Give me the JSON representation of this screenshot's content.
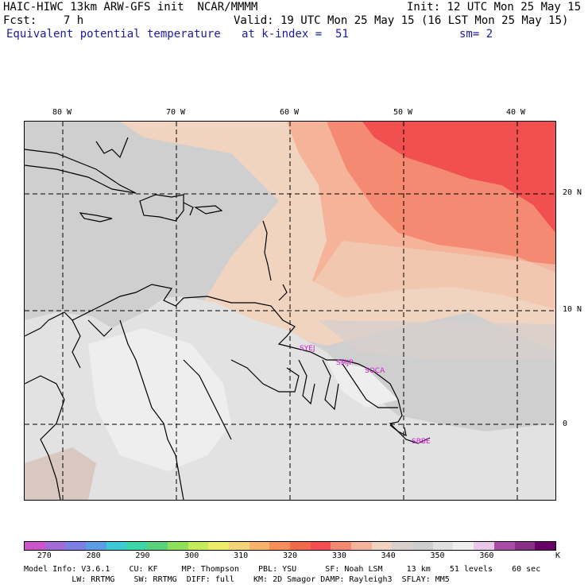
{
  "header": {
    "left_line1": "HAIC-HIWC 13km ARW-GFS init  NCAR/MMMM",
    "right_line1": "Init: 12 UTC Mon 25 May 15",
    "left_line2": "Fcst:    7 h",
    "right_line2": "Valid: 19 UTC Mon 25 May 15 (16 LST Mon 25 May 15)",
    "field": "Equivalent potential temperature",
    "level": "at k-index =  51",
    "smoothing": "sm= 2"
  },
  "longitude_labels": [
    "80 W",
    "70 W",
    "60 W",
    "50 W",
    "40 W"
  ],
  "latitude_labels": [
    "20 N",
    "10 N",
    "0"
  ],
  "stations": [
    "SYEJ",
    "SMJP",
    "SOCA",
    "SBBE"
  ],
  "colorbar": {
    "colors": [
      "#cc55cc",
      "#a36bd6",
      "#7f7fe8",
      "#5a9ee8",
      "#3ec9d6",
      "#3ed6a8",
      "#5ad27a",
      "#8ee05a",
      "#c4ec5a",
      "#ecec6b",
      "#f5d479",
      "#f5b46b",
      "#f5905a",
      "#f06b4a",
      "#f25050",
      "#f58a72",
      "#f5b49a",
      "#f0d4c0",
      "#d8d0cc",
      "#cfcfcf",
      "#e0e0e0",
      "#eeeeee",
      "#e8c8e8",
      "#a84ca8",
      "#883088",
      "#660066"
    ],
    "tick_labels": [
      "270",
      "280",
      "290",
      "300",
      "310",
      "320",
      "330",
      "340",
      "350",
      "360"
    ],
    "units": "K"
  },
  "footer": {
    "line1": "Model Info: V3.6.1    CU: KF     MP: Thompson    PBL: YSU      SF: Noah LSM     13 km    51 levels    60 sec",
    "line2": "          LW: RRTMG    SW: RRTMG  DIFF: full    KM: 2D Smagor DAMP: Rayleigh3  SFLAY: MM5"
  }
}
